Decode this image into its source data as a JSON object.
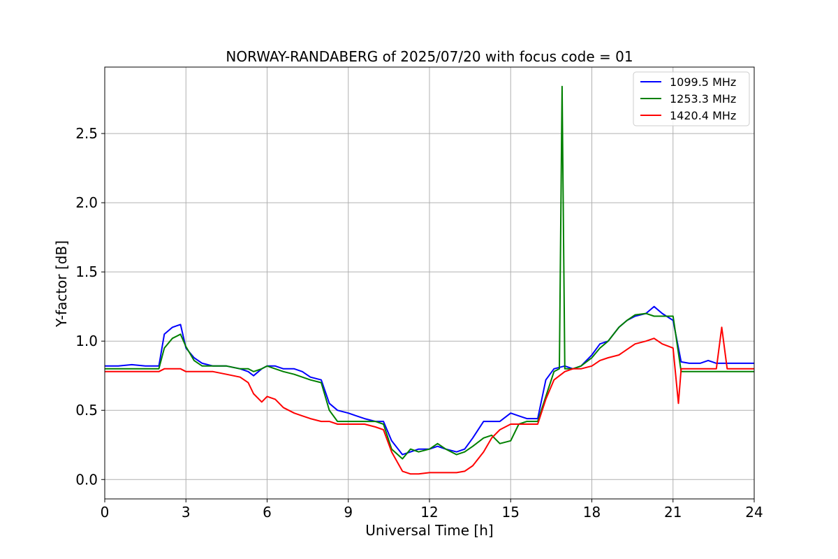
{
  "chart_data": {
    "type": "line",
    "title": "NORWAY-RANDABERG of 2025/07/20 with focus code = 01",
    "xlabel": "Universal Time [h]",
    "ylabel": "Y-factor [dB]",
    "xlim": [
      0,
      24
    ],
    "ylim": [
      -0.14,
      2.98
    ],
    "xticks": [
      0,
      3,
      6,
      9,
      12,
      15,
      18,
      21,
      24
    ],
    "yticks": [
      0.0,
      0.5,
      1.0,
      1.5,
      2.0,
      2.5
    ],
    "ytick_labels": [
      "0.0",
      "0.5",
      "1.0",
      "1.5",
      "2.0",
      "2.5"
    ],
    "grid": true,
    "legend_position": "top-right",
    "series": [
      {
        "name": "1099.5 MHz",
        "color": "#0000ff",
        "x": [
          0.0,
          0.5,
          1.0,
          1.5,
          2.0,
          2.2,
          2.5,
          2.8,
          3.0,
          3.3,
          3.6,
          4.0,
          4.5,
          5.0,
          5.3,
          5.5,
          5.8,
          6.0,
          6.3,
          6.6,
          7.0,
          7.3,
          7.6,
          8.0,
          8.3,
          8.6,
          9.0,
          9.3,
          9.6,
          10.0,
          10.3,
          10.6,
          11.0,
          11.3,
          11.6,
          12.0,
          12.3,
          12.6,
          13.0,
          13.3,
          13.6,
          14.0,
          14.3,
          14.6,
          15.0,
          15.3,
          15.6,
          16.0,
          16.3,
          16.6,
          17.0,
          17.3,
          17.6,
          18.0,
          18.3,
          18.6,
          19.0,
          19.3,
          19.6,
          20.0,
          20.3,
          20.6,
          21.0,
          21.3,
          21.6,
          22.0,
          22.3,
          22.6,
          23.0,
          23.3,
          23.6,
          24.0
        ],
        "y": [
          0.82,
          0.82,
          0.83,
          0.82,
          0.82,
          1.05,
          1.1,
          1.12,
          0.95,
          0.88,
          0.84,
          0.82,
          0.82,
          0.8,
          0.78,
          0.75,
          0.8,
          0.82,
          0.82,
          0.8,
          0.8,
          0.78,
          0.74,
          0.72,
          0.55,
          0.5,
          0.48,
          0.46,
          0.44,
          0.42,
          0.42,
          0.28,
          0.18,
          0.2,
          0.22,
          0.22,
          0.24,
          0.22,
          0.2,
          0.22,
          0.3,
          0.42,
          0.42,
          0.42,
          0.48,
          0.46,
          0.44,
          0.44,
          0.72,
          0.8,
          0.82,
          0.8,
          0.82,
          0.9,
          0.98,
          1.0,
          1.1,
          1.15,
          1.18,
          1.2,
          1.25,
          1.2,
          1.15,
          0.85,
          0.84,
          0.84,
          0.86,
          0.84,
          0.84,
          0.84,
          0.84,
          0.84
        ]
      },
      {
        "name": "1253.3 MHz",
        "color": "#008000",
        "x": [
          0.0,
          0.5,
          1.0,
          1.5,
          2.0,
          2.2,
          2.5,
          2.8,
          3.0,
          3.3,
          3.6,
          4.0,
          4.5,
          5.0,
          5.3,
          5.5,
          5.8,
          6.0,
          6.3,
          6.6,
          7.0,
          7.3,
          7.6,
          8.0,
          8.3,
          8.6,
          9.0,
          9.3,
          9.6,
          10.0,
          10.3,
          10.6,
          11.0,
          11.3,
          11.6,
          12.0,
          12.3,
          12.6,
          13.0,
          13.3,
          13.6,
          14.0,
          14.3,
          14.6,
          15.0,
          15.3,
          15.6,
          16.0,
          16.3,
          16.6,
          16.8,
          16.9,
          17.0,
          17.3,
          17.6,
          18.0,
          18.3,
          18.6,
          19.0,
          19.3,
          19.6,
          20.0,
          20.3,
          20.6,
          21.0,
          21.3,
          21.6,
          22.0,
          22.3,
          22.6,
          23.0,
          23.3,
          23.6,
          24.0
        ],
        "y": [
          0.8,
          0.8,
          0.8,
          0.8,
          0.8,
          0.95,
          1.02,
          1.05,
          0.96,
          0.86,
          0.82,
          0.82,
          0.82,
          0.8,
          0.8,
          0.78,
          0.8,
          0.82,
          0.8,
          0.78,
          0.76,
          0.74,
          0.72,
          0.7,
          0.5,
          0.42,
          0.42,
          0.42,
          0.42,
          0.42,
          0.4,
          0.22,
          0.15,
          0.22,
          0.2,
          0.22,
          0.26,
          0.22,
          0.18,
          0.2,
          0.24,
          0.3,
          0.32,
          0.26,
          0.28,
          0.4,
          0.42,
          0.42,
          0.6,
          0.78,
          0.8,
          2.84,
          0.8,
          0.8,
          0.82,
          0.88,
          0.95,
          1.0,
          1.1,
          1.15,
          1.19,
          1.2,
          1.18,
          1.18,
          1.18,
          0.78,
          0.78,
          0.78,
          0.78,
          0.78,
          0.78,
          0.78,
          0.78,
          0.78
        ]
      },
      {
        "name": "1420.4 MHz",
        "color": "#ff0000",
        "x": [
          0.0,
          0.5,
          1.0,
          1.5,
          2.0,
          2.2,
          2.5,
          2.8,
          3.0,
          3.3,
          3.6,
          4.0,
          4.5,
          5.0,
          5.3,
          5.5,
          5.8,
          6.0,
          6.3,
          6.6,
          7.0,
          7.3,
          7.6,
          8.0,
          8.3,
          8.6,
          9.0,
          9.3,
          9.6,
          10.0,
          10.3,
          10.6,
          11.0,
          11.3,
          11.6,
          12.0,
          12.3,
          12.6,
          13.0,
          13.3,
          13.6,
          14.0,
          14.3,
          14.6,
          15.0,
          15.3,
          15.6,
          16.0,
          16.3,
          16.6,
          17.0,
          17.3,
          17.6,
          18.0,
          18.3,
          18.6,
          19.0,
          19.3,
          19.6,
          20.0,
          20.3,
          20.6,
          21.0,
          21.2,
          21.3,
          21.6,
          22.0,
          22.3,
          22.6,
          22.8,
          23.0,
          23.3,
          23.6,
          24.0
        ],
        "y": [
          0.78,
          0.78,
          0.78,
          0.78,
          0.78,
          0.8,
          0.8,
          0.8,
          0.78,
          0.78,
          0.78,
          0.78,
          0.76,
          0.74,
          0.7,
          0.62,
          0.56,
          0.6,
          0.58,
          0.52,
          0.48,
          0.46,
          0.44,
          0.42,
          0.42,
          0.4,
          0.4,
          0.4,
          0.4,
          0.38,
          0.36,
          0.2,
          0.06,
          0.04,
          0.04,
          0.05,
          0.05,
          0.05,
          0.05,
          0.06,
          0.1,
          0.2,
          0.3,
          0.36,
          0.4,
          0.4,
          0.4,
          0.4,
          0.58,
          0.72,
          0.78,
          0.8,
          0.8,
          0.82,
          0.86,
          0.88,
          0.9,
          0.94,
          0.98,
          1.0,
          1.02,
          0.98,
          0.95,
          0.55,
          0.8,
          0.8,
          0.8,
          0.8,
          0.8,
          1.1,
          0.8,
          0.8,
          0.8,
          0.8
        ]
      }
    ]
  }
}
